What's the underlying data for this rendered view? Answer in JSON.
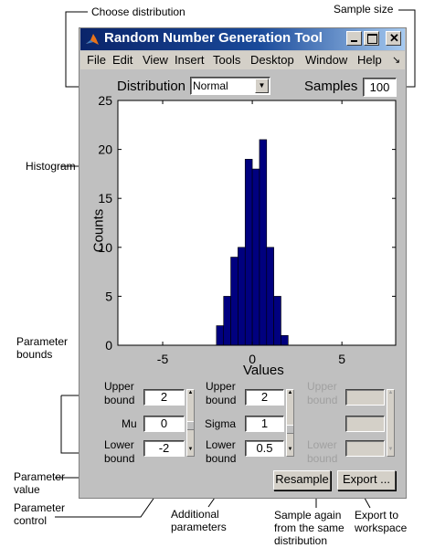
{
  "annotations": {
    "choose_distribution": "Choose distribution",
    "sample_size": "Sample size",
    "histogram": "Histogram",
    "parameter_bounds": [
      "Parameter",
      "bounds"
    ],
    "parameter_value": [
      "Parameter",
      "value"
    ],
    "parameter_control": [
      "Parameter",
      "control"
    ],
    "additional_parameters": [
      "Additional",
      "parameters"
    ],
    "sample_again": [
      "Sample again",
      "from the same",
      "distribution"
    ],
    "export_to": [
      "Export to",
      "workspace"
    ]
  },
  "window": {
    "title": "Random Number Generation Tool",
    "menu": [
      "File",
      "Edit",
      "View",
      "Insert",
      "Tools",
      "Desktop",
      "Window",
      "Help"
    ]
  },
  "controls": {
    "distribution_label": "Distribution",
    "distribution_value": "Normal",
    "samples_label": "Samples",
    "samples_value": "100"
  },
  "params": {
    "col1": {
      "upper": [
        "Upper",
        "bound"
      ],
      "upper_value": "2",
      "name": "Mu",
      "value": "0",
      "lower": [
        "Lower",
        "bound"
      ],
      "lower_value": "-2"
    },
    "col2": {
      "upper": [
        "Upper",
        "bound"
      ],
      "upper_value": "2",
      "name": "Sigma",
      "value": "1",
      "lower": [
        "Lower",
        "bound"
      ],
      "lower_value": "0.5"
    },
    "col3": {
      "upper": [
        "Upper",
        "bound"
      ],
      "lower": [
        "Lower",
        "bound"
      ]
    }
  },
  "buttons": {
    "resample": "Resample",
    "export": "Export ..."
  },
  "colors": {
    "bar": "#00007f",
    "titlebar": "#0a246a"
  },
  "chart_data": {
    "type": "bar",
    "xlabel": "Values",
    "ylabel": "Counts",
    "xlim": [
      -7.5,
      8
    ],
    "ylim": [
      0,
      25
    ],
    "xticks": [
      -5,
      0,
      5
    ],
    "yticks": [
      0,
      5,
      10,
      15,
      20,
      25
    ],
    "bin_width": 0.4,
    "bin_left_edges": [
      -2.0,
      -1.6,
      -1.2,
      -0.8,
      -0.4,
      0.0,
      0.4,
      0.8,
      1.2,
      1.6
    ],
    "values": [
      2,
      5,
      9,
      10,
      19,
      18,
      21,
      10,
      5,
      1
    ]
  }
}
